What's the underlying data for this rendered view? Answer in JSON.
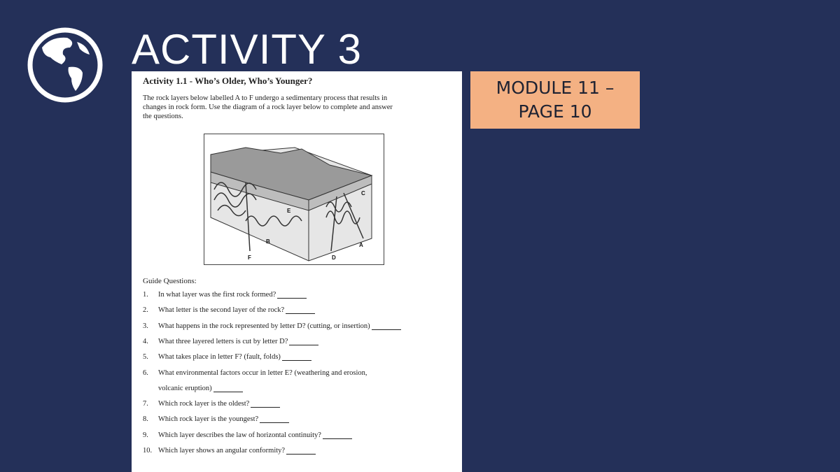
{
  "slide": {
    "title": "ACTIVITY 3",
    "badge": {
      "lines": [
        "MODULE 11 –",
        "PAGE 10"
      ]
    },
    "worksheet": {
      "title": "Activity 1.1 - Who’s Older, Who’s Younger?",
      "intro": [
        "The rock layers below  labelled A to F undergo a sedimentary process that results in",
        "changes in rock form. Use the diagram of a rock layer below to complete and answer",
        "the questions."
      ],
      "figure_labels": {
        "A": "A",
        "B": "B",
        "C": "C",
        "D": "D",
        "E": "E",
        "F": "F"
      },
      "guide_heading": "Guide Questions:",
      "questions": [
        {
          "number": "1.",
          "lines": [
            "In what layer was the first rock formed?"
          ]
        },
        {
          "number": "2.",
          "lines": [
            "What letter is the second layer of the rock?"
          ]
        },
        {
          "number": "3.",
          "lines": [
            "What happens in the rock represented by letter D? (cutting, or insertion)"
          ]
        },
        {
          "number": "4.",
          "lines": [
            "What three layered letters is cut by letter D?"
          ]
        },
        {
          "number": "5.",
          "lines": [
            "What takes place in letter F? (fault, folds)"
          ]
        },
        {
          "number": "6.",
          "lines": [
            "What environmental factors occur in letter E? (weathering and erosion,",
            "volcanic eruption)"
          ]
        },
        {
          "number": "7.",
          "lines": [
            "Which rock layer is the oldest?"
          ]
        },
        {
          "number": "8.",
          "lines": [
            "Which rock layer is the youngest?"
          ]
        },
        {
          "number": "9.",
          "lines": [
            "Which layer describes the law of horizontal continuity?"
          ]
        },
        {
          "number": "10.",
          "lines": [
            "Which layer shows an angular conformity?"
          ]
        }
      ]
    }
  }
}
